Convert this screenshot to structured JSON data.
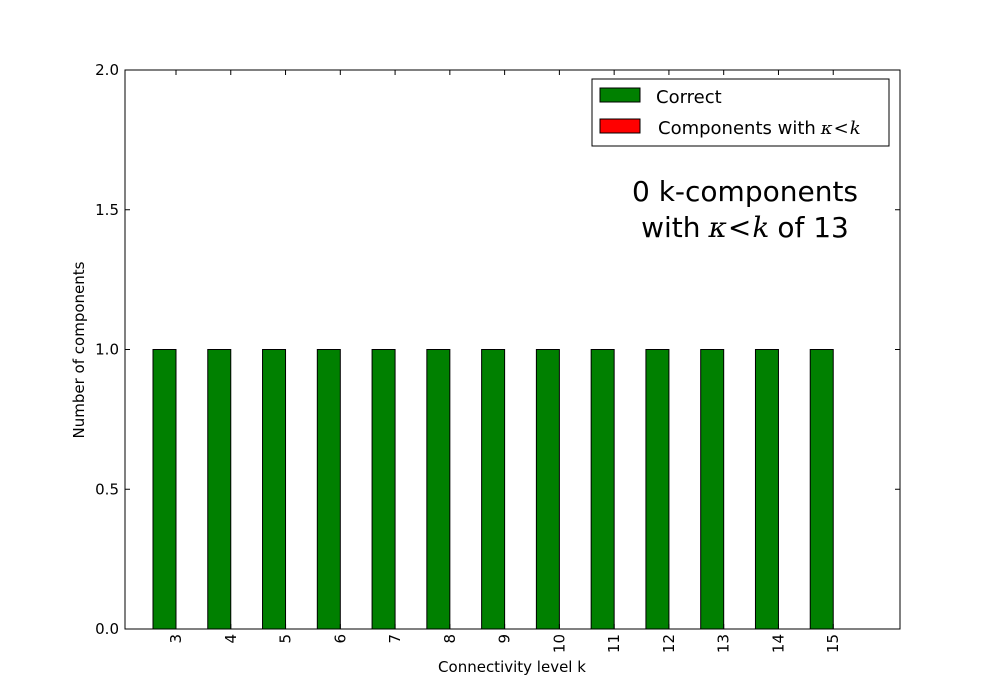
{
  "chart_data": {
    "type": "bar",
    "categories": [
      "3",
      "4",
      "5",
      "6",
      "7",
      "8",
      "9",
      "10",
      "11",
      "12",
      "13",
      "14",
      "15"
    ],
    "series": [
      {
        "name": "Correct",
        "values": [
          1,
          1,
          1,
          1,
          1,
          1,
          1,
          1,
          1,
          1,
          1,
          1,
          1
        ],
        "color": "#008000"
      },
      {
        "name": "Components with",
        "values": [
          0,
          0,
          0,
          0,
          0,
          0,
          0,
          0,
          0,
          0,
          0,
          0,
          0
        ],
        "color": "#ff0000"
      }
    ],
    "xlabel": "Connectivity level k",
    "ylabel": "Number of components",
    "ylim": [
      0,
      2.0
    ],
    "yticks": [
      "0.0",
      "0.5",
      "1.0",
      "1.5",
      "2.0"
    ],
    "legend": {
      "position": "top-right",
      "math_symbol_kappa": "κ",
      "math_symbol_lt": "<",
      "math_symbol_k": "k"
    },
    "annotation": {
      "line1": "0 k-components",
      "line2_prefix": "with",
      "kappa": "κ",
      "lt": "<",
      "k": "k",
      "line2_suffix": "of 13"
    },
    "grid": false
  }
}
